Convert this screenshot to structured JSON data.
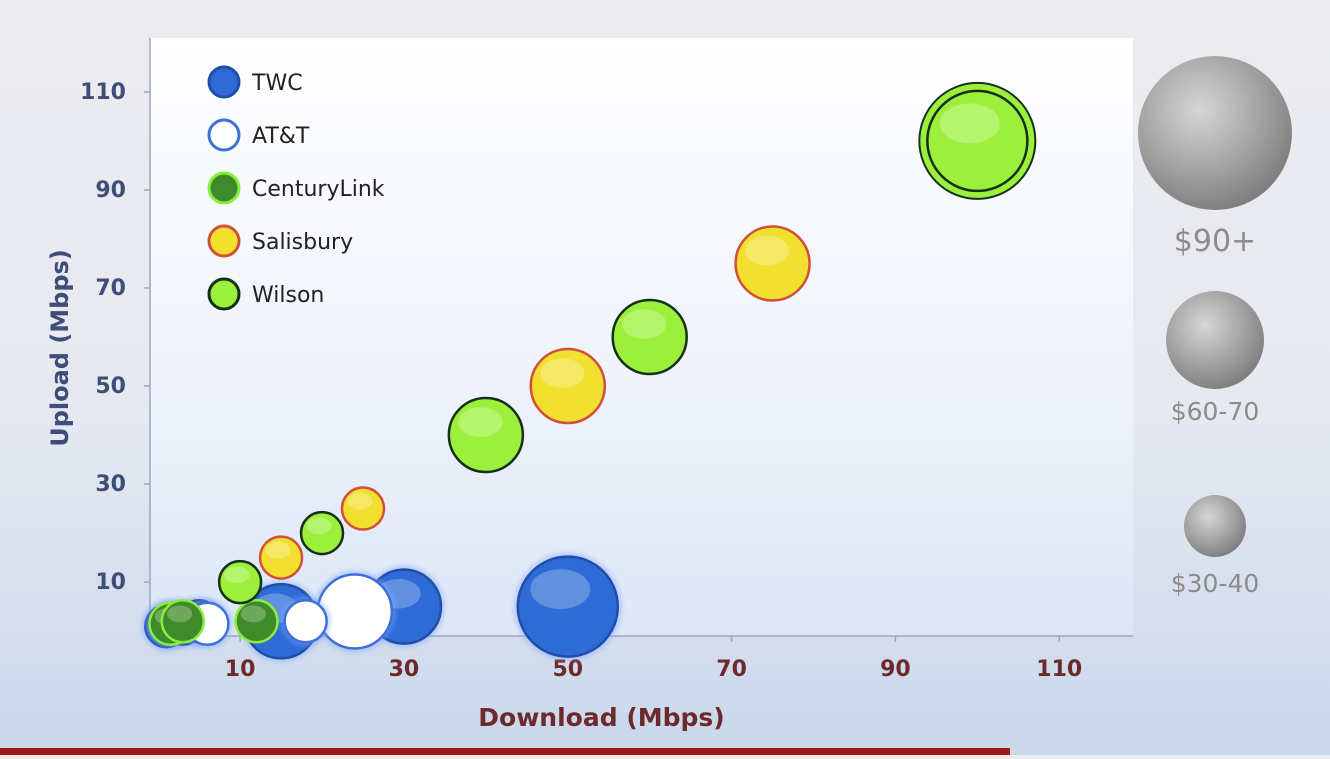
{
  "chart_data": {
    "type": "scatter",
    "subtype": "bubble",
    "xlabel": "Download (Mbps)",
    "ylabel": "Upload (Mbps)",
    "xticks": [
      10,
      30,
      50,
      70,
      90,
      110
    ],
    "yticks": [
      10,
      30,
      50,
      70,
      90,
      110
    ],
    "xlim": [
      -1,
      119
    ],
    "ylim": [
      -1,
      121
    ],
    "grid": false,
    "legend_position": "top-left",
    "series": [
      {
        "name": "TWC",
        "fill": "#2e6bd6",
        "stroke": "#1f4fa8",
        "points": [
          {
            "x": 1,
            "y": 1,
            "price_tier": "$30-40"
          },
          {
            "x": 3,
            "y": 1.5,
            "price_tier": "$30-40"
          },
          {
            "x": 5,
            "y": 2,
            "price_tier": "$30-40"
          },
          {
            "x": 15,
            "y": 2,
            "price_tier": "$60-70"
          },
          {
            "x": 30,
            "y": 5,
            "price_tier": "$60-70"
          },
          {
            "x": 50,
            "y": 5,
            "price_tier": "$90+"
          }
        ]
      },
      {
        "name": "AT&T",
        "fill": "#ffffff",
        "stroke": "#3f6fd8",
        "points": [
          {
            "x": 1.5,
            "y": 1.5,
            "price_tier": "$30-40"
          },
          {
            "x": 6,
            "y": 1.5,
            "price_tier": "$30-40"
          },
          {
            "x": 18,
            "y": 2,
            "price_tier": "$30-40"
          },
          {
            "x": 24,
            "y": 4,
            "price_tier": "$60-70"
          }
        ]
      },
      {
        "name": "CenturyLink",
        "fill": "#3f8a2a",
        "stroke": "#8aee3c",
        "points": [
          {
            "x": 1.5,
            "y": 1.5,
            "price_tier": "$30-40"
          },
          {
            "x": 3,
            "y": 2,
            "price_tier": "$30-40"
          },
          {
            "x": 12,
            "y": 2,
            "price_tier": "$30-40"
          }
        ]
      },
      {
        "name": "Salisbury",
        "fill": "#f2e030",
        "stroke": "#d2503a",
        "points": [
          {
            "x": 15,
            "y": 15,
            "price_tier": "$30-40"
          },
          {
            "x": 25,
            "y": 25,
            "price_tier": "$30-40"
          },
          {
            "x": 50,
            "y": 50,
            "price_tier": "$60-70"
          },
          {
            "x": 75,
            "y": 75,
            "price_tier": "$60-70"
          },
          {
            "x": 100,
            "y": 100,
            "price_tier": "$90+"
          }
        ]
      },
      {
        "name": "Wilson",
        "fill": "#9cf03c",
        "stroke": "#14301a",
        "points": [
          {
            "x": 10,
            "y": 10,
            "price_tier": "$30-40"
          },
          {
            "x": 20,
            "y": 20,
            "price_tier": "$30-40"
          },
          {
            "x": 40,
            "y": 40,
            "price_tier": "$60-70"
          },
          {
            "x": 60,
            "y": 60,
            "price_tier": "$60-70"
          },
          {
            "x": 100,
            "y": 100,
            "price_tier": "$90+"
          }
        ]
      }
    ],
    "size_legend": [
      {
        "label": "$90+"
      },
      {
        "label": "$60-70"
      },
      {
        "label": "$30-40"
      }
    ],
    "colors": {
      "axis_text": "#3f4e78",
      "xlabel_text": "#6e2a2a",
      "size_label_text": "#8c8c8c",
      "bottom_bar": "#a01818"
    }
  }
}
